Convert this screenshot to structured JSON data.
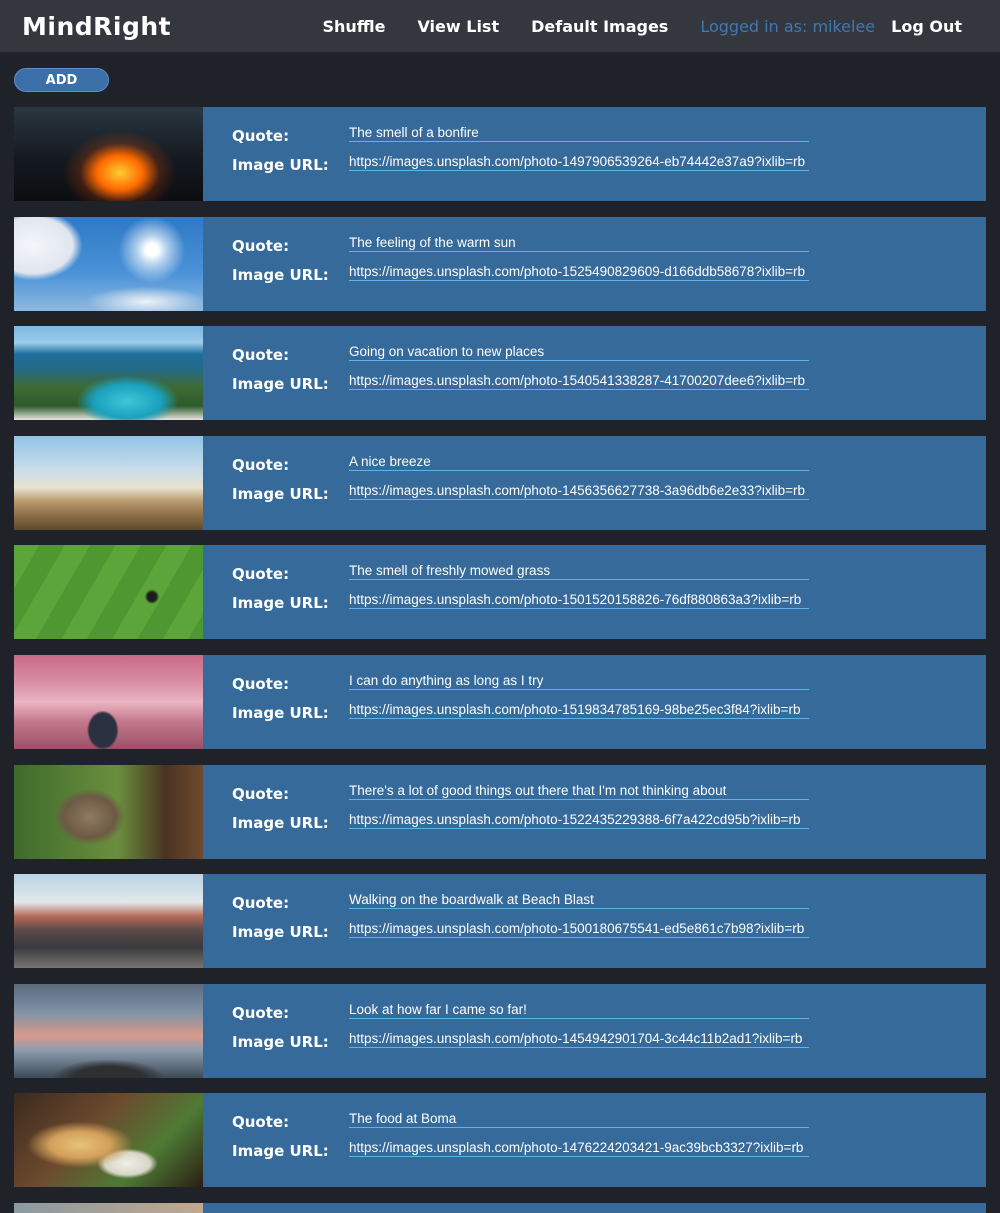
{
  "app": {
    "brand": "MindRight"
  },
  "nav": {
    "shuffle": "Shuffle",
    "view_list": "View List",
    "default_images": "Default Images",
    "logged_in": "Logged in as: mikelee",
    "log_out": "Log Out"
  },
  "add_label": "ADD",
  "labels": {
    "quote": "Quote:",
    "image_url": "Image URL:"
  },
  "items": [
    {
      "quote": "The smell of a bonfire",
      "url": "https://images.unsplash.com/photo-1497906539264-eb74442e37a9?ixlib=rb",
      "image": "bonfire-photo"
    },
    {
      "quote": "The feeling of the warm sun",
      "url": "https://images.unsplash.com/photo-1525490829609-d166ddb58678?ixlib=rb",
      "image": "sun-sky-photo"
    },
    {
      "quote": "Going on vacation to new places",
      "url": "https://images.unsplash.com/photo-1540541338287-41700207dee6?ixlib=rb",
      "image": "resort-pool-photo"
    },
    {
      "quote": "A nice breeze",
      "url": "https://images.unsplash.com/photo-1456356627738-3a96db6e2e33?ixlib=rb",
      "image": "pampas-grass-photo"
    },
    {
      "quote": "The smell of freshly mowed grass",
      "url": "https://images.unsplash.com/photo-1501520158826-76df880863a3?ixlib=rb",
      "image": "mowed-lawn-photo"
    },
    {
      "quote": "I can do anything as long as I try",
      "url": "https://images.unsplash.com/photo-1519834785169-98be25ec3f84?ixlib=rb",
      "image": "person-clouds-photo"
    },
    {
      "quote": "There's a lot of good things out there that I'm not thinking about",
      "url": "https://images.unsplash.com/photo-1522435229388-6f7a422cd95b?ixlib=rb",
      "image": "monkey-photo"
    },
    {
      "quote": "Walking on the boardwalk at Beach Blast",
      "url": "https://images.unsplash.com/photo-1500180675541-ed5e861c7b98?ixlib=rb",
      "image": "boardwalk-crowd-photo"
    },
    {
      "quote": "Look at how far I came so far!",
      "url": "https://images.unsplash.com/photo-1454942901704-3c44c11b2ad1?ixlib=rb",
      "image": "mountain-summit-photo"
    },
    {
      "quote": "The food at Boma",
      "url": "https://images.unsplash.com/photo-1476224203421-9ac39bcb3327?ixlib=rb",
      "image": "food-plate-photo"
    }
  ]
}
